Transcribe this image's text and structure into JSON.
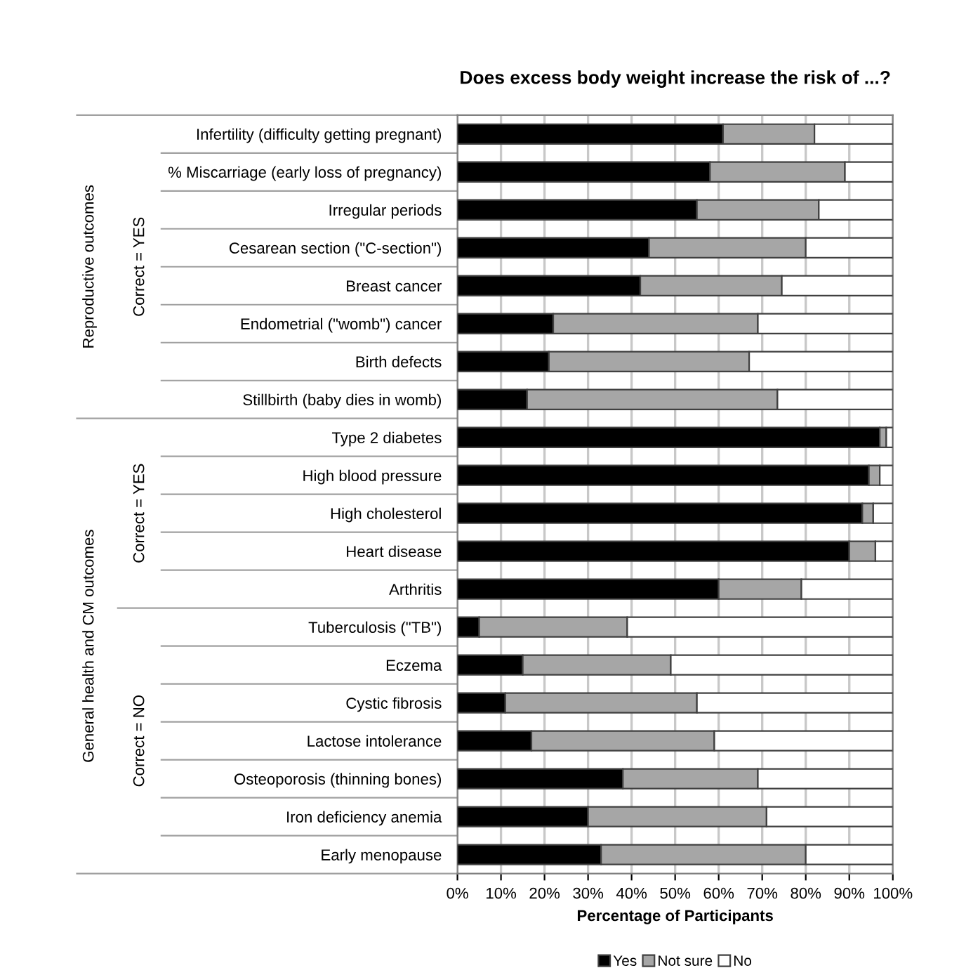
{
  "chart_data": {
    "type": "bar",
    "orientation": "horizontal",
    "stacked": true,
    "title": "Does excess body weight increase the risk of ...?",
    "xlabel": "Percentage of Participants",
    "categories": [
      "Infertility (difficulty getting pregnant)",
      "% Miscarriage (early loss of pregnancy)",
      "Irregular periods",
      "Cesarean section (\"C-section\")",
      "Breast cancer",
      "Endometrial (\"womb\") cancer",
      "Birth defects",
      "Stillbirth (baby dies in womb)",
      "Type 2 diabetes",
      "High blood pressure",
      "High cholesterol",
      "Heart disease",
      "Arthritis",
      "Tuberculosis (\"TB\")",
      "Eczema",
      "Cystic fibrosis",
      "Lactose intolerance",
      "Osteoporosis (thinning bones)",
      "Iron deficiency anemia",
      "Early menopause"
    ],
    "series": [
      {
        "name": "Yes",
        "color": "#000000",
        "values": [
          61,
          58,
          55,
          44,
          42,
          22,
          21,
          16,
          97,
          94.5,
          93,
          90,
          60,
          5,
          15,
          11,
          17,
          38,
          30,
          33
        ]
      },
      {
        "name": "Not sure",
        "color": "#a6a6a6",
        "values": [
          21,
          31,
          28,
          36,
          32.5,
          47,
          46,
          57.5,
          1.5,
          2.5,
          2.5,
          6,
          19,
          34,
          34,
          44,
          42,
          31,
          41,
          47
        ]
      },
      {
        "name": "No",
        "color": "#ffffff",
        "values": [
          18,
          11,
          17,
          20,
          25.5,
          31,
          33,
          26.5,
          1.5,
          3,
          4.5,
          4,
          21,
          61,
          51,
          45,
          41,
          31,
          29,
          20
        ]
      }
    ],
    "xlim": [
      0,
      100
    ],
    "xticks": [
      {
        "value": 0,
        "label": "0%"
      },
      {
        "value": 10,
        "label": "10%"
      },
      {
        "value": 20,
        "label": "20%"
      },
      {
        "value": 30,
        "label": "30%"
      },
      {
        "value": 40,
        "label": "40%"
      },
      {
        "value": 50,
        "label": "50%"
      },
      {
        "value": 60,
        "label": "60%"
      },
      {
        "value": 70,
        "label": "70%"
      },
      {
        "value": 80,
        "label": "80%"
      },
      {
        "value": 90,
        "label": "90%"
      },
      {
        "value": 100,
        "label": "100%"
      }
    ],
    "grid": "x",
    "legend": "bottom",
    "annotations": [
      "Reproductive outcomes",
      "Correct = YES",
      "General health and CM outcomes",
      "Correct = YES",
      "Correct = NO"
    ]
  }
}
